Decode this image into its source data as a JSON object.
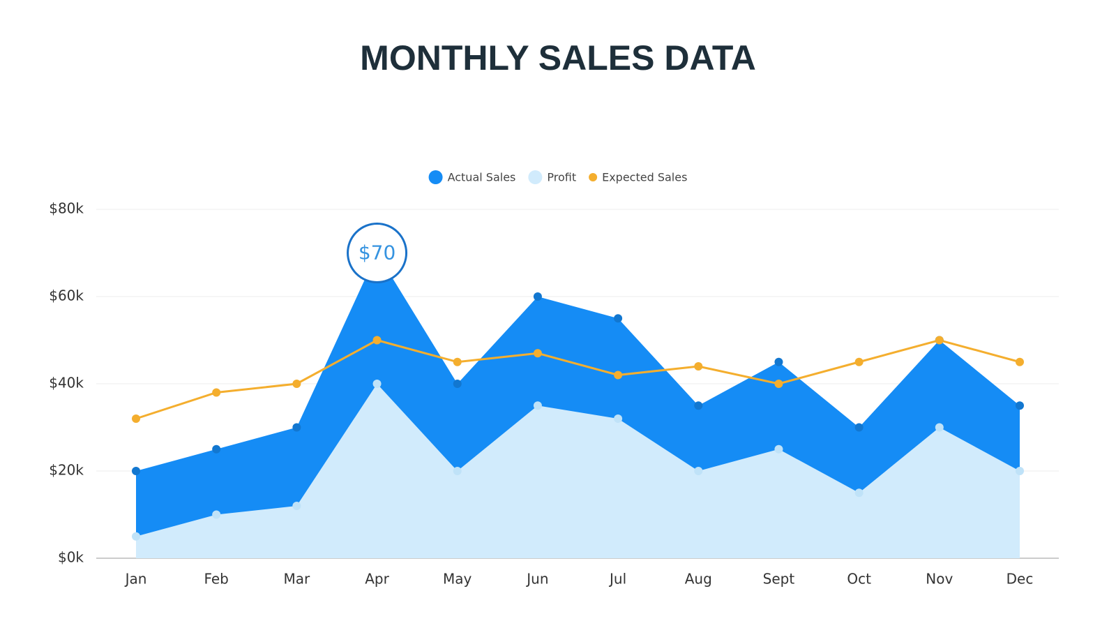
{
  "chart_data": {
    "type": "area",
    "title": "MONTHLY SALES DATA",
    "categories": [
      "Jan",
      "Feb",
      "Mar",
      "Apr",
      "May",
      "Jun",
      "Jul",
      "Aug",
      "Sept",
      "Oct",
      "Nov",
      "Dec"
    ],
    "series": [
      {
        "name": "Actual Sales",
        "type": "area",
        "color": "#158cf5",
        "values": [
          20,
          25,
          30,
          70,
          40,
          60,
          55,
          35,
          45,
          30,
          50,
          35
        ],
        "value_labels": [
          null,
          null,
          null,
          "$70",
          null,
          null,
          null,
          null,
          null,
          null,
          null,
          null
        ]
      },
      {
        "name": "Profit",
        "type": "area",
        "color": "#d1ebfc",
        "values": [
          5,
          10,
          12,
          40,
          20,
          35,
          32,
          20,
          25,
          15,
          30,
          20
        ]
      },
      {
        "name": "Expected Sales",
        "type": "line",
        "color": "#f4ae2e",
        "values": [
          32,
          38,
          40,
          50,
          45,
          47,
          42,
          44,
          40,
          45,
          50,
          45
        ]
      }
    ],
    "ylim": [
      0,
      80
    ],
    "yticks": [
      {
        "value": 0,
        "label": "$0k"
      },
      {
        "value": 20,
        "label": "$20k"
      },
      {
        "value": 40,
        "label": "$40k"
      },
      {
        "value": 60,
        "label": "$60k"
      },
      {
        "value": 80,
        "label": "$80k"
      }
    ],
    "grid": true,
    "legend": "top"
  }
}
